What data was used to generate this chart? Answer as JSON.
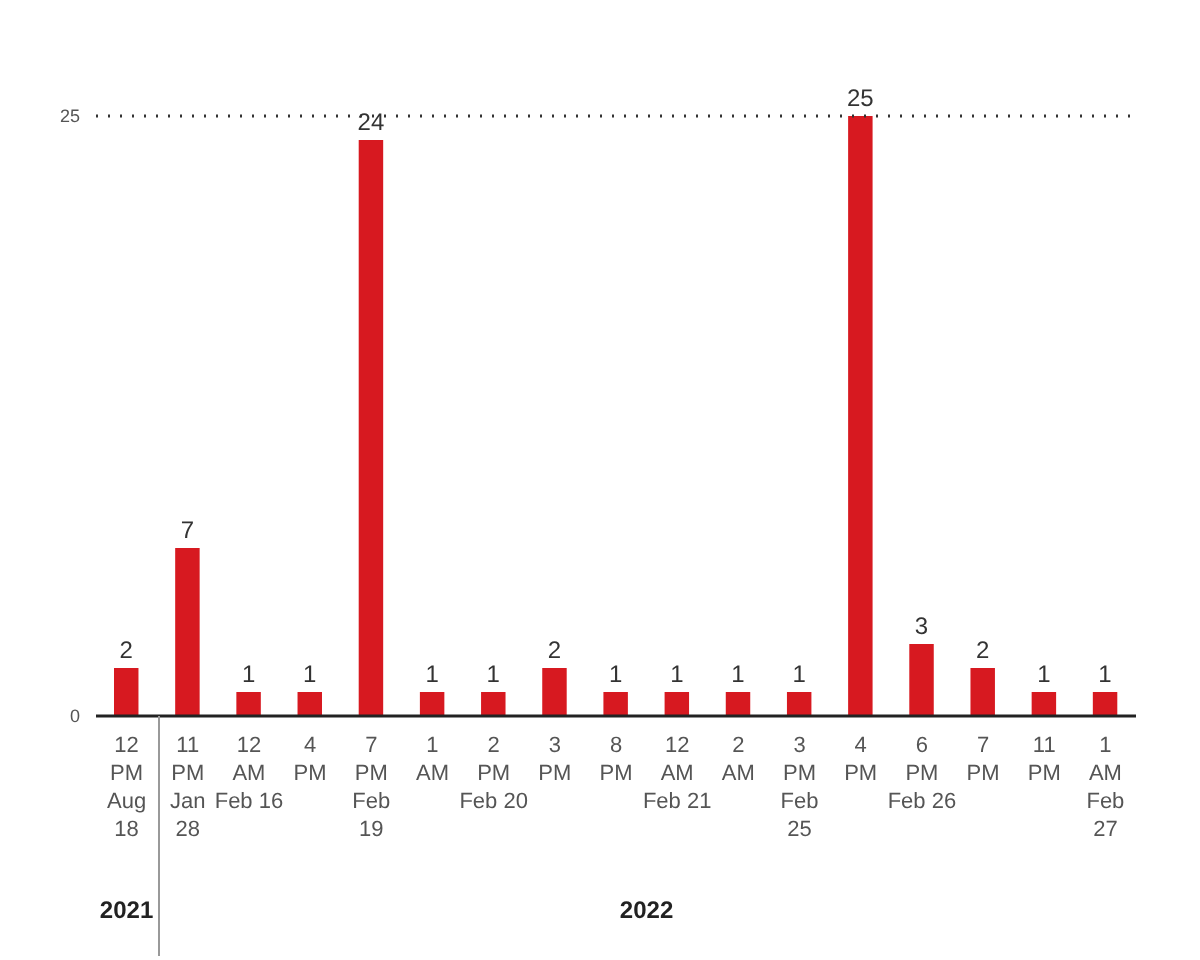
{
  "chart_data": {
    "type": "bar",
    "categories": [
      "12\nPM\nAug\n18",
      "11\nPM\nJan\n28",
      "12\nAM\nFeb 16",
      "4\nPM",
      "7\nPM\nFeb\n19",
      "1\nAM",
      "2\nPM\nFeb 20",
      "3\nPM",
      "8\nPM",
      "12\nAM\nFeb 21",
      "2\nAM",
      "3\nPM\nFeb\n25",
      "4\nPM",
      "6\nPM\nFeb 26",
      "7\nPM",
      "11\nPM",
      "1\nAM\nFeb\n27"
    ],
    "values": [
      2,
      7,
      1,
      1,
      24,
      1,
      1,
      2,
      1,
      1,
      1,
      1,
      25,
      3,
      2,
      1,
      1
    ],
    "color": "#d71920",
    "ylim": [
      0,
      25
    ],
    "yticks": [
      0,
      25
    ],
    "ref_lines": [
      {
        "axis": "y",
        "value": 25,
        "line_style": "dotted",
        "color": "#333333"
      }
    ],
    "annotations": [
      "2021",
      "2022"
    ],
    "data_labels": true,
    "grid": false,
    "legend": false
  }
}
